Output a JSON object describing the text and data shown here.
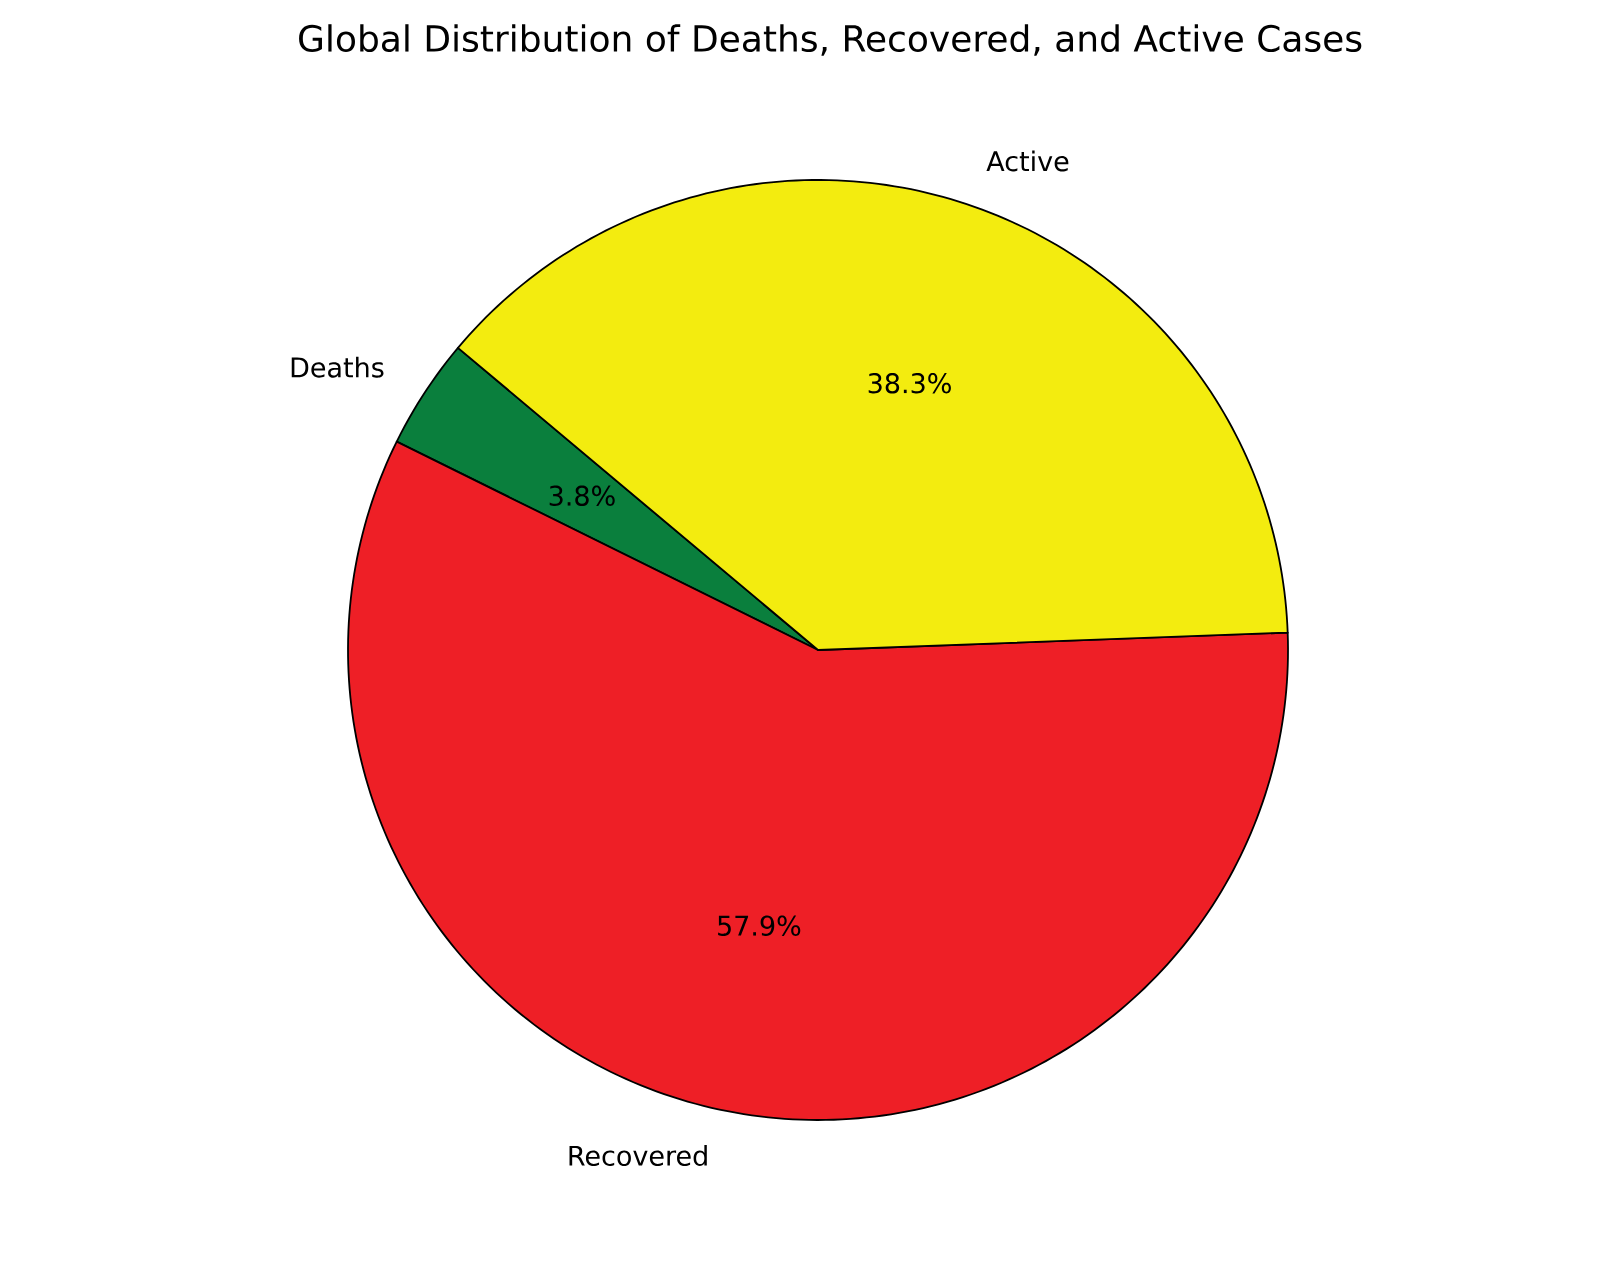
{
  "chart_data": {
    "type": "pie",
    "title": "Global Distribution of Deaths, Recovered, and Active Cases",
    "categories": [
      "Deaths",
      "Recovered",
      "Active"
    ],
    "values": [
      3.8,
      57.9,
      38.3
    ],
    "colors": [
      "#0a7f3d",
      "#ee1f26",
      "#f3ec0f"
    ],
    "value_labels": [
      "3.8%",
      "57.9%",
      "38.3%"
    ]
  }
}
